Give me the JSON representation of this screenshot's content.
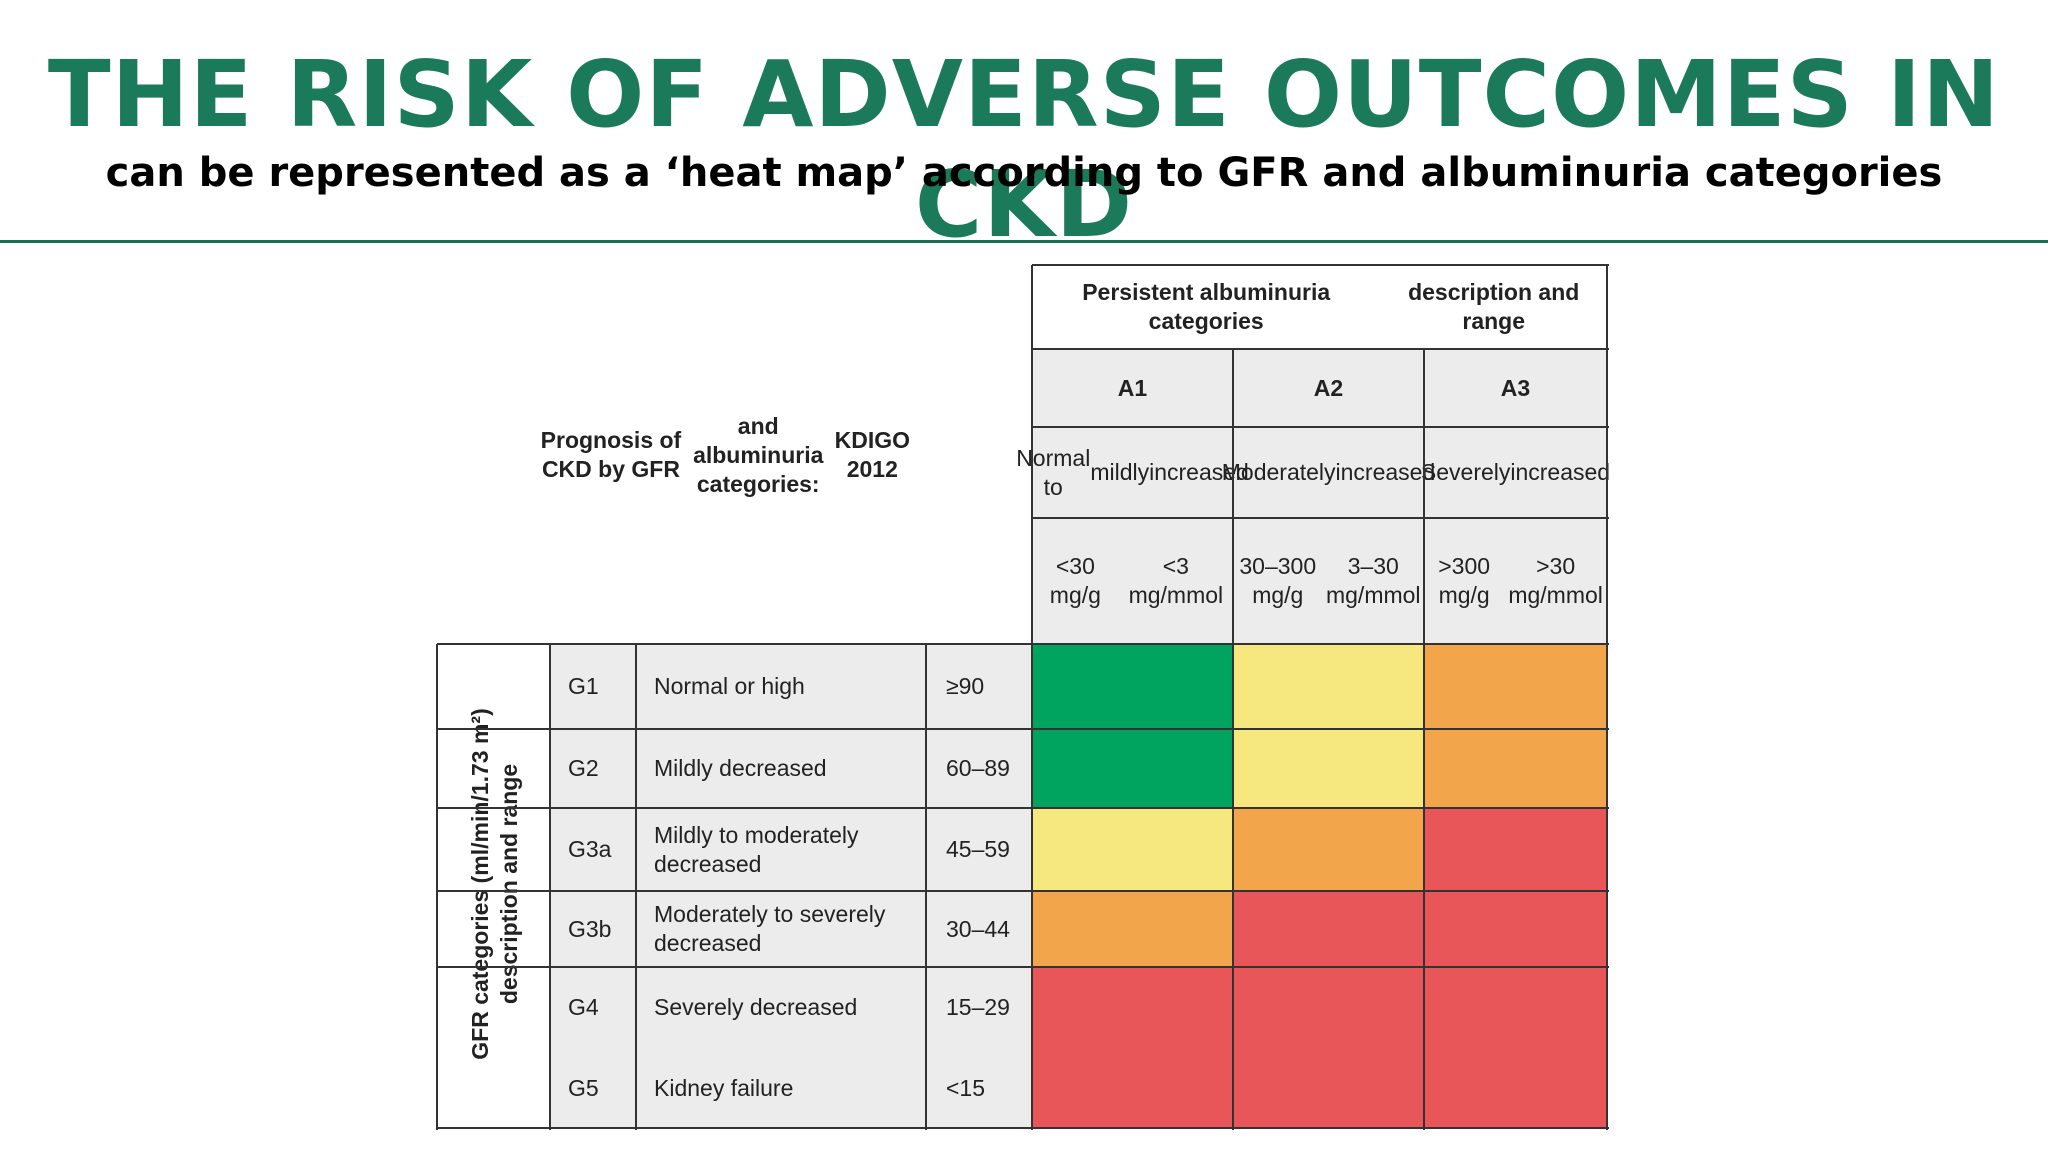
{
  "title": "THE RISK OF ADVERSE OUTCOMES IN CKD",
  "subtitle": "can be represented as a ‘heat map’ according to GFR and albuminuria categories",
  "chart_data": {
    "type": "heatmap",
    "prognosis_title": [
      "Prognosis of CKD by GFR",
      "and albuminuria categories:",
      "KDIGO 2012"
    ],
    "column_header": [
      "Persistent albuminuria categories",
      "description and range"
    ],
    "row_header": [
      "GFR categories (ml/min/1.73 m²)",
      "description and range"
    ],
    "columns": [
      {
        "code": "A1",
        "desc": [
          "Normal to",
          "mildly",
          "increased"
        ],
        "range": [
          "<30 mg/g",
          "<3 mg/mmol"
        ]
      },
      {
        "code": "A2",
        "desc": [
          "Moderately",
          "increased"
        ],
        "range": [
          "30–300 mg/g",
          "3–30 mg/mmol"
        ]
      },
      {
        "code": "A3",
        "desc": [
          "Severely",
          "increased"
        ],
        "range": [
          ">300 mg/g",
          ">30 mg/mmol"
        ]
      }
    ],
    "rows": [
      {
        "code": "G1",
        "desc": "Normal or high",
        "range": "≥90"
      },
      {
        "code": "G2",
        "desc": "Mildly decreased",
        "range": "60–89"
      },
      {
        "code": "G3a",
        "desc": "Mildly to moderately decreased",
        "range": "45–59"
      },
      {
        "code": "G3b",
        "desc": "Moderately to severely decreased",
        "range": "30–44"
      },
      {
        "code": "G4",
        "desc": "Severely decreased",
        "range": "15–29"
      },
      {
        "code": "G5",
        "desc": "Kidney failure",
        "range": "<15"
      }
    ],
    "risk_levels": [
      [
        "low",
        "moderate",
        "high"
      ],
      [
        "low",
        "moderate",
        "high"
      ],
      [
        "moderate",
        "high",
        "very-high"
      ],
      [
        "high",
        "very-high",
        "very-high"
      ],
      [
        "very-high",
        "very-high",
        "very-high"
      ],
      [
        "very-high",
        "very-high",
        "very-high"
      ]
    ],
    "colors": {
      "low": "#00a45e",
      "moderate": "#f6e77f",
      "high": "#f2a54a",
      "very-high": "#e8565a"
    }
  }
}
